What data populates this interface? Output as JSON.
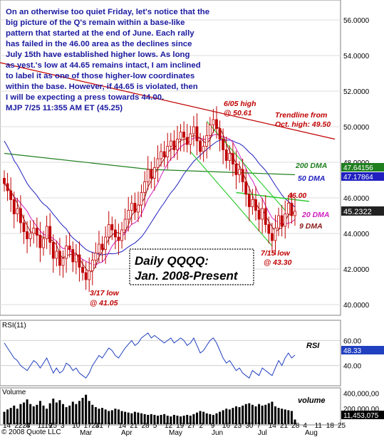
{
  "commentary": [
    "On an otherwise too quiet Friday, let's notice that the",
    "big picture of the Q's remain within a base-like",
    "pattern that started at the end of June. Each rally",
    "has failed in the 46.00 area as the declines since",
    "July 15th have established higher lows.  As long",
    "as yest.'s low at 44.65 remains intact, I am inclined",
    "to label it as one of those higher-low coordinates",
    "within the base. However, if 44.65 is violated, then",
    "I will be expecting a press towards 44.00.",
    "MJP  7/25 11:355 AM ET (45.25)"
  ],
  "chart_title_lines": [
    "Daily QQQQ:",
    "Jan. 2008-Present"
  ],
  "annotations": {
    "high_label": "6/05 high",
    "high_value": "@ 50.61",
    "trend_label": "Trendline from",
    "trend_value": "Oct. high: 49.50",
    "dma200": "200 DMA",
    "dma50": "50 DMA",
    "level46": "46.00",
    "dma20": "20 DMA",
    "dma9": "9 DMA",
    "low715_label": "7/15 low",
    "low715_value": "@ 43.30",
    "low317_label": "3/17 low",
    "low317_value": "@ 41.05",
    "rsi": "RSI",
    "volume": "volume"
  },
  "panels": {
    "rsi_title": "RSI(11)",
    "volume_title": "Volume",
    "copyright": "© 2008 Quote LLC"
  },
  "price_axis": {
    "ticks": [
      "56.0000",
      "54.0000",
      "52.0000",
      "50.0000",
      "48.0000",
      "46.0000",
      "44.0000",
      "42.0000",
      "40.0000"
    ],
    "badge_200": "47.64156",
    "badge_50": "47.17864",
    "badge_last": "45.2322"
  },
  "rsi_axis": {
    "ticks": [
      "60.00",
      "40.00"
    ],
    "badge": "48.33"
  },
  "volume_axis": {
    "ticks": [
      "400,000,00",
      "200,000,00"
    ],
    "badge": "11,453,075"
  },
  "date_axis": {
    "days": [
      "14",
      "2228",
      "4",
      "1119",
      "25",
      "3",
      "10",
      "1724",
      "31",
      "7",
      "14",
      "21",
      "28",
      "5",
      "12",
      "19",
      "27",
      "2",
      "9",
      "16",
      "23",
      "30",
      "7",
      "14",
      "21",
      "28",
      "4",
      "11",
      "18",
      "25"
    ],
    "months": [
      "Mar",
      "Apr",
      "May",
      "Jun",
      "Jul",
      "Aug"
    ]
  },
  "colors": {
    "commentary": "#1a1aa0",
    "title_text": "#000000",
    "annotation": "#c00000",
    "dma9": "#8b1a1a",
    "dma20": "#d020c0",
    "dma50": "#2020c0",
    "dma200": "#208020",
    "channel": "#33cc33",
    "trendline": "#c00000",
    "candles": "#c00000",
    "rsi_line": "#2040c0",
    "volume": "#000000",
    "badge_200": "#208020",
    "badge_50": "#2020c0",
    "badge_last": "#222222"
  },
  "chart_data": {
    "type": "candlestick",
    "symbol": "QQQQ",
    "ylim": [
      39.5,
      57
    ],
    "closes": [
      46.8,
      46.4,
      45.9,
      45.1,
      45.4,
      44.6,
      44.1,
      43.7,
      44.0,
      44.3,
      43.9,
      43.2,
      43.7,
      44.4,
      43.5,
      42.6,
      43.0,
      42.2,
      42.6,
      43.3,
      43.1,
      42.4,
      42.8,
      42.1,
      41.8,
      41.4,
      41.9,
      42.5,
      42.9,
      43.4,
      43.1,
      43.8,
      44.5,
      44.2,
      43.8,
      43.6,
      44.2,
      44.8,
      45.3,
      45.7,
      45.2,
      45.6,
      46.3,
      46.9,
      47.6,
      47.1,
      47.7,
      48.2,
      48.6,
      48.3,
      48.9,
      49.2,
      48.7,
      49.3,
      49.7,
      49.4,
      49.0,
      49.6,
      50.0,
      49.2,
      48.6,
      48.9,
      49.5,
      50.1,
      50.4,
      49.9,
      49.3,
      48.7,
      48.1,
      48.5,
      47.9,
      47.3,
      47.6,
      46.9,
      46.2,
      45.5,
      45.9,
      45.3,
      44.8,
      45.4,
      44.5,
      44.0,
      43.6,
      44.3,
      45.0,
      44.4,
      45.1,
      45.7,
      45.0,
      45.25
    ],
    "dma200_approx": [
      48.5,
      48.2,
      47.9,
      47.6,
      47.5,
      47.4,
      47.3
    ],
    "trendline": {
      "from_label": "Oct. high",
      "value": 49.5
    },
    "levels": {
      "resistance": 46.0,
      "june_high": 50.61,
      "july_low": 43.3,
      "march_low": 41.05
    },
    "rsi_ylim": [
      25,
      75
    ],
    "rsi": [
      58,
      54,
      50,
      46,
      44,
      40,
      38,
      36,
      40,
      44,
      42,
      38,
      42,
      46,
      40,
      34,
      38,
      34,
      36,
      42,
      40,
      36,
      38,
      34,
      32,
      30,
      34,
      40,
      44,
      48,
      46,
      50,
      54,
      52,
      48,
      46,
      50,
      54,
      57,
      60,
      56,
      58,
      62,
      64,
      66,
      62,
      64,
      62,
      60,
      58,
      60,
      62,
      58,
      60,
      62,
      60,
      56,
      58,
      62,
      56,
      50,
      52,
      56,
      60,
      62,
      58,
      52,
      46,
      42,
      44,
      40,
      36,
      38,
      34,
      32,
      30,
      36,
      34,
      32,
      38,
      36,
      34,
      32,
      38,
      44,
      40,
      46,
      50,
      46,
      48.33
    ],
    "volume_ylim": [
      0,
      450000000
    ],
    "volume": [
      160,
      190,
      210,
      240,
      200,
      260,
      280,
      320,
      260,
      230,
      250,
      300,
      240,
      200,
      270,
      330,
      280,
      310,
      260,
      220,
      240,
      290,
      260,
      300,
      340,
      380,
      300,
      250,
      220,
      200,
      210,
      190,
      170,
      180,
      200,
      190,
      170,
      160,
      150,
      140,
      160,
      150,
      140,
      130,
      120,
      130,
      120,
      110,
      120,
      130,
      110,
      100,
      120,
      110,
      100,
      110,
      120,
      110,
      130,
      150,
      170,
      160,
      140,
      130,
      120,
      140,
      160,
      180,
      200,
      190,
      210,
      230,
      220,
      240,
      260,
      270,
      250,
      230,
      260,
      240,
      250,
      270,
      290,
      230,
      210,
      200,
      190,
      180,
      170,
      60
    ]
  }
}
